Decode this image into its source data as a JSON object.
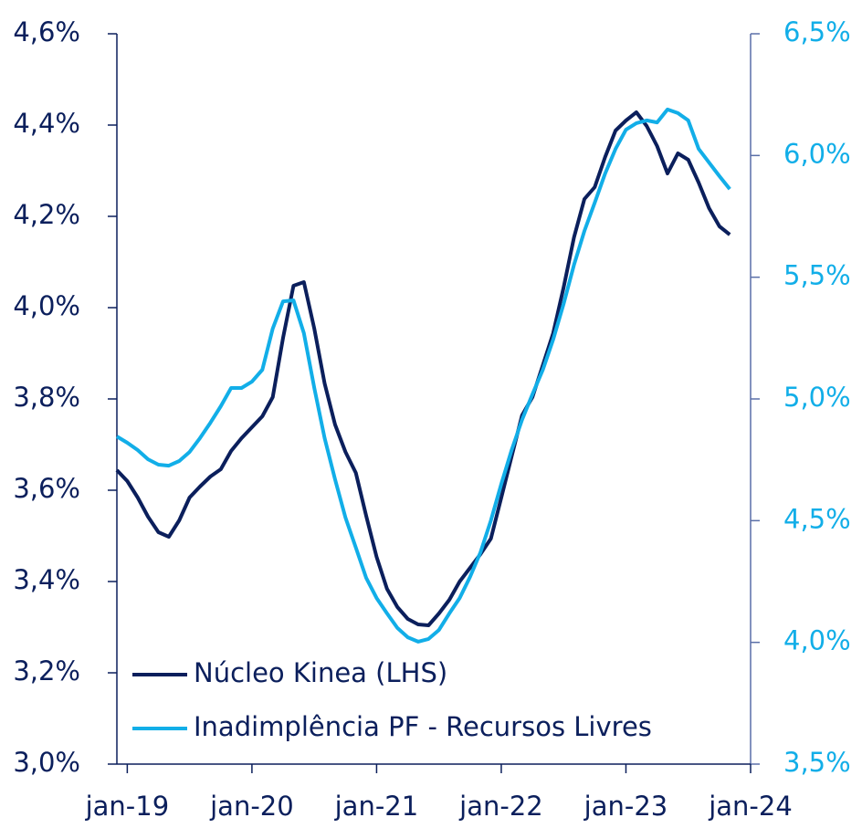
{
  "chart_data": {
    "type": "line",
    "categories": [
      null,
      "jan-19",
      null,
      null,
      null,
      null,
      null,
      null,
      null,
      null,
      null,
      null,
      null,
      "jan-20",
      null,
      null,
      null,
      null,
      null,
      null,
      null,
      null,
      null,
      null,
      null,
      "jan-21",
      null,
      null,
      null,
      null,
      null,
      null,
      null,
      null,
      null,
      null,
      null,
      "jan-22",
      null,
      null,
      null,
      null,
      null,
      null,
      null,
      null,
      null,
      null,
      null,
      "jan-23",
      null,
      null,
      null,
      null,
      null,
      null,
      null,
      null,
      null,
      null,
      null,
      "jan-24"
    ],
    "series": [
      {
        "name": "Núcleo Kinea (LHS)",
        "color": "#0b1f5c",
        "axis": "y",
        "values": [
          3.644,
          3.62,
          3.584,
          3.542,
          3.508,
          3.498,
          3.534,
          3.584,
          3.608,
          3.63,
          3.646,
          3.686,
          3.714,
          3.738,
          3.762,
          3.804,
          3.934,
          4.048,
          4.056,
          3.954,
          3.834,
          3.744,
          3.684,
          3.638,
          3.544,
          3.454,
          3.384,
          3.344,
          3.318,
          3.306,
          3.304,
          3.33,
          3.36,
          3.4,
          3.43,
          3.46,
          3.494,
          3.584,
          3.674,
          3.764,
          3.804,
          3.874,
          3.944,
          4.044,
          4.154,
          4.238,
          4.264,
          4.33,
          4.388,
          4.41,
          4.428,
          4.398,
          4.354,
          4.294,
          4.338,
          4.324,
          4.274,
          4.218,
          4.178,
          4.16,
          null,
          null
        ]
      },
      {
        "name": "Inadimplência PF - Recursos Livres",
        "color": "#12aee8",
        "axis": "y2",
        "values": [
          4.846,
          4.82,
          4.79,
          4.752,
          4.73,
          4.726,
          4.745,
          4.782,
          4.839,
          4.902,
          4.97,
          5.045,
          5.045,
          5.071,
          5.12,
          5.289,
          5.401,
          5.405,
          5.27,
          5.045,
          4.839,
          4.67,
          4.513,
          4.389,
          4.265,
          4.182,
          4.119,
          4.059,
          4.021,
          4.003,
          4.014,
          4.051,
          4.119,
          4.182,
          4.269,
          4.37,
          4.501,
          4.651,
          4.79,
          4.914,
          5.019,
          5.12,
          5.244,
          5.39,
          5.551,
          5.69,
          5.806,
          5.926,
          6.027,
          6.106,
          6.133,
          6.144,
          6.136,
          6.189,
          6.174,
          6.144,
          6.027,
          5.971,
          5.915,
          5.862,
          null,
          null
        ]
      }
    ],
    "ylim": [
      3.0,
      4.6
    ],
    "yticks": [
      {
        "value": 3.0,
        "label": "3,0%"
      },
      {
        "value": 3.2,
        "label": "3,2%"
      },
      {
        "value": 3.4,
        "label": "3,4%"
      },
      {
        "value": 3.6,
        "label": "3,6%"
      },
      {
        "value": 3.8,
        "label": "3,8%"
      },
      {
        "value": 4.0,
        "label": "4,0%"
      },
      {
        "value": 4.2,
        "label": "4,2%"
      },
      {
        "value": 4.4,
        "label": "4,4%"
      },
      {
        "value": 4.6,
        "label": "4,6%"
      }
    ],
    "y2lim": [
      3.5,
      6.5
    ],
    "y2ticks": [
      {
        "value": 3.5,
        "label": "3,5%"
      },
      {
        "value": 4.0,
        "label": "4,0%"
      },
      {
        "value": 4.5,
        "label": "4,5%"
      },
      {
        "value": 5.0,
        "label": "5,0%"
      },
      {
        "value": 5.5,
        "label": "5,5%"
      },
      {
        "value": 6.0,
        "label": "6,0%"
      },
      {
        "value": 6.5,
        "label": "6,5%"
      }
    ],
    "legend": "lower left"
  }
}
